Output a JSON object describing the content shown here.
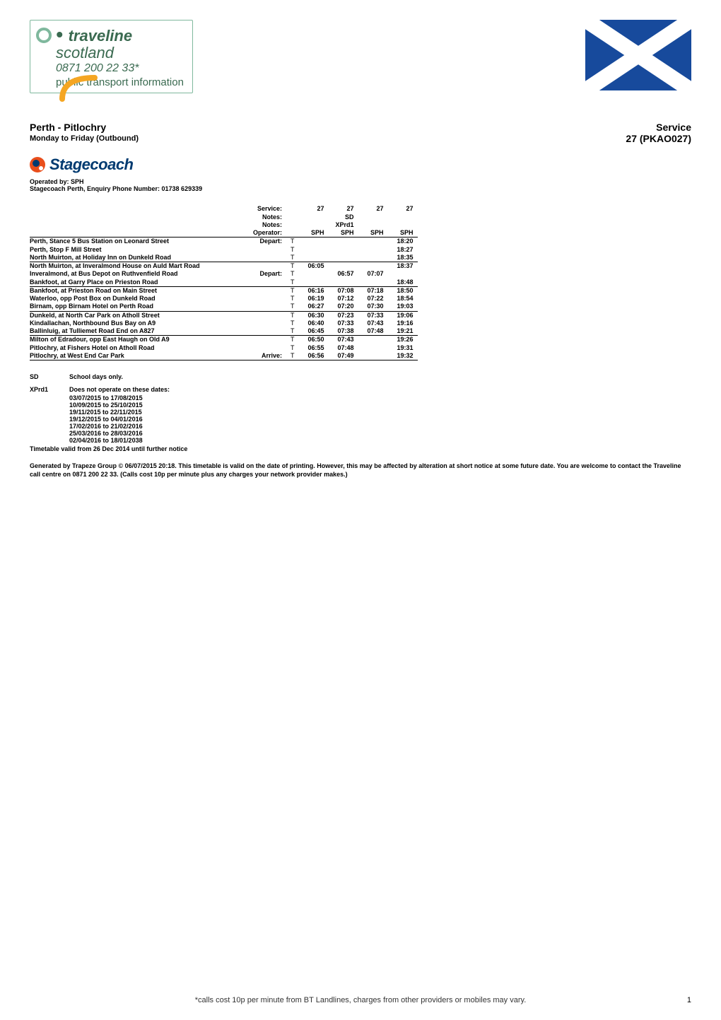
{
  "header": {
    "traveline": {
      "word": "traveline",
      "sub": "scotland",
      "phone": "0871 200 22 33*",
      "footer": "public transport information",
      "brand_green": "#3a6a50",
      "border_green": "#7fb89d",
      "arc_orange": "#f5a623"
    },
    "flag": {
      "bg": "#174a9c",
      "cross": "#ffffff"
    }
  },
  "title": {
    "route": "Perth - Pitlochry",
    "direction": "Monday to Friday (Outbound)",
    "service_label": "Service",
    "service_code": "27  (PKAO027)"
  },
  "operator": {
    "logo_text": "Stagecoach",
    "operated_by": "Operated by: SPH",
    "enquiry": "Stagecoach Perth, Enquiry Phone Number: 01738 629339",
    "logo_orange": "#e94e1b",
    "logo_blue": "#003a70"
  },
  "table": {
    "header_rows": [
      {
        "label": "",
        "ad": "Service:",
        "cols": [
          "27",
          "27",
          "27",
          "27"
        ]
      },
      {
        "label": "",
        "ad": "Notes:",
        "cols": [
          "",
          "SD",
          "",
          ""
        ]
      },
      {
        "label": "",
        "ad": "Notes:",
        "cols": [
          "",
          "XPrd1",
          "",
          ""
        ]
      },
      {
        "label": "",
        "ad": "Operator:",
        "cols": [
          "SPH",
          "SPH",
          "SPH",
          "SPH"
        ]
      }
    ],
    "body_rows": [
      {
        "label": "Perth, Stance 5 Bus Station on Leonard Street",
        "ad": "Depart:",
        "t": "T",
        "cols": [
          "",
          "",
          "",
          "18:20"
        ],
        "top_line": true
      },
      {
        "label": "Perth, Stop F Mill Street",
        "ad": "",
        "t": "T",
        "cols": [
          "",
          "",
          "",
          "18:27"
        ]
      },
      {
        "label": "North Muirton, at Holiday Inn on Dunkeld Road",
        "ad": "",
        "t": "T",
        "cols": [
          "",
          "",
          "",
          "18:35"
        ]
      },
      {
        "label": "North Muirton, at Inveralmond House on Auld Mart Road",
        "ad": "",
        "t": "T",
        "cols": [
          "06:05",
          "",
          "",
          "18:37"
        ],
        "top_line": true
      },
      {
        "label": "Inveralmond, at Bus Depot on Ruthvenfield Road",
        "ad": "Depart:",
        "t": "T",
        "cols": [
          "",
          "06:57",
          "07:07",
          ""
        ]
      },
      {
        "label": "Bankfoot, at Garry Place on Prieston Road",
        "ad": "",
        "t": "T",
        "cols": [
          "",
          "",
          "",
          "18:48"
        ]
      },
      {
        "label": "Bankfoot, at Prieston Road on Main Street",
        "ad": "",
        "t": "T",
        "cols": [
          "06:16",
          "07:08",
          "07:18",
          "18:50"
        ],
        "top_line": true
      },
      {
        "label": "Waterloo, opp Post Box on Dunkeld Road",
        "ad": "",
        "t": "T",
        "cols": [
          "06:19",
          "07:12",
          "07:22",
          "18:54"
        ]
      },
      {
        "label": "Birnam, opp Birnam Hotel on Perth Road",
        "ad": "",
        "t": "T",
        "cols": [
          "06:27",
          "07:20",
          "07:30",
          "19:03"
        ]
      },
      {
        "label": "Dunkeld, at North Car Park on Atholl Street",
        "ad": "",
        "t": "T",
        "cols": [
          "06:30",
          "07:23",
          "07:33",
          "19:06"
        ],
        "top_line": true
      },
      {
        "label": "Kindallachan, Northbound Bus Bay on A9",
        "ad": "",
        "t": "T",
        "cols": [
          "06:40",
          "07:33",
          "07:43",
          "19:16"
        ]
      },
      {
        "label": "Ballinluig, at Tulliemet Road End on A827",
        "ad": "",
        "t": "T",
        "cols": [
          "06:45",
          "07:38",
          "07:48",
          "19:21"
        ]
      },
      {
        "label": "Milton of Edradour, opp East Haugh on Old A9",
        "ad": "",
        "t": "T",
        "cols": [
          "06:50",
          "07:43",
          "",
          "19:26"
        ],
        "top_line": true
      },
      {
        "label": "Pitlochry, at Fishers Hotel on Atholl Road",
        "ad": "",
        "t": "T",
        "cols": [
          "06:55",
          "07:48",
          "",
          "19:31"
        ]
      },
      {
        "label": "Pitlochry, at West End Car Park",
        "ad": "Arrive:",
        "t": "T",
        "cols": [
          "06:56",
          "07:49",
          "",
          "19:32"
        ],
        "bot_line": true
      }
    ]
  },
  "legend": {
    "sd_code": "SD",
    "sd_text": "School days only.",
    "xprd_code": "XPrd1",
    "xprd_text": "Does not operate on these dates:",
    "xprd_dates": [
      "03/07/2015 to 17/08/2015",
      "10/09/2015 to 25/10/2015",
      "19/11/2015 to 22/11/2015",
      "19/12/2015 to 04/01/2016",
      "17/02/2016 to 21/02/2016",
      "25/03/2016 to 28/03/2016",
      "02/04/2016 to 18/01/2038"
    ],
    "validity": "Timetable valid from 26 Dec 2014 until further notice"
  },
  "generated": "Generated by Trapeze Group © 06/07/2015 20:18. This timetable is valid on the date of printing.   However, this may be affected by alteration at short notice at some future date. You are welcome to contact the Traveline call centre on 0871 200 22 33.  (Calls cost 10p per minute plus any charges your network provider makes.)",
  "footer": {
    "note": "*calls cost 10p per minute from BT Landlines, charges from other providers or mobiles may vary.",
    "page": "1"
  }
}
